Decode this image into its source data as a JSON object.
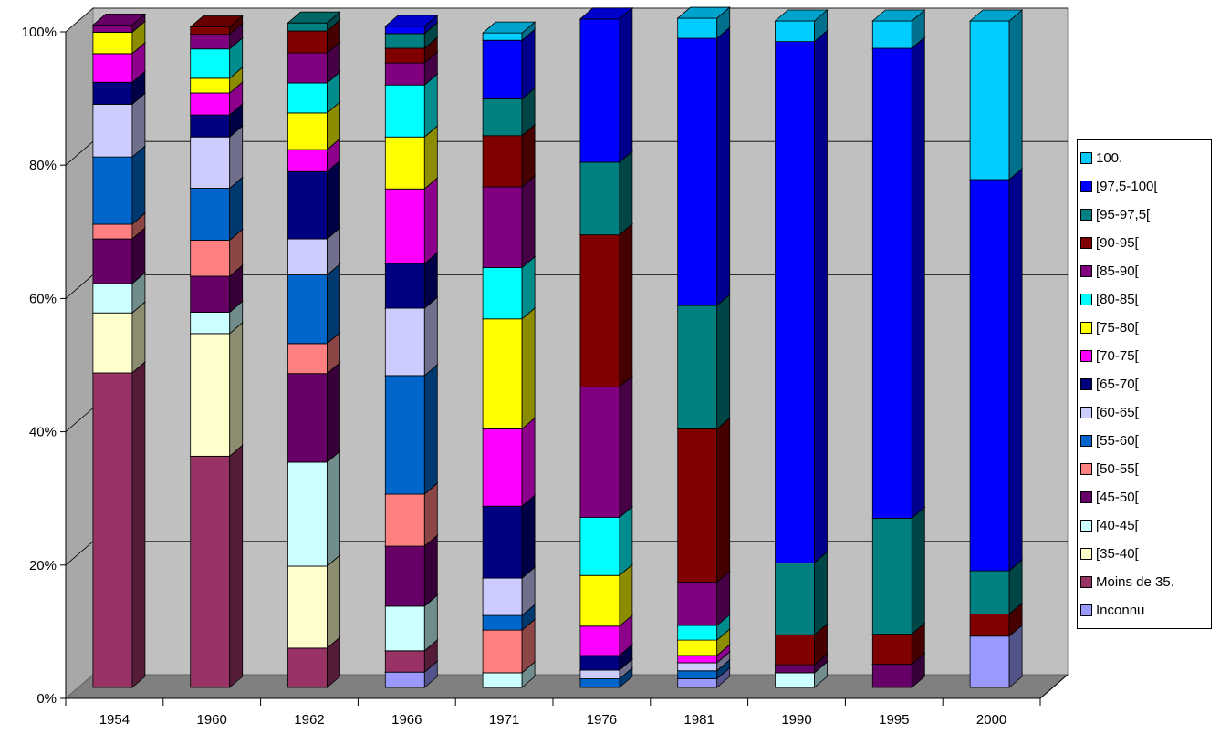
{
  "chart_data": {
    "type": "bar",
    "stacked": true,
    "percent": true,
    "three_d": true,
    "title": "",
    "xlabel": "",
    "ylabel": "",
    "ylim": [
      0,
      100
    ],
    "y_ticks": [
      "0%",
      "20%",
      "40%",
      "60%",
      "80%",
      "100%"
    ],
    "grid": true,
    "legend_position": "right",
    "categories": [
      "1954",
      "1960",
      "1962",
      "1966",
      "1971",
      "1976",
      "1981",
      "1990",
      "1995",
      "2000"
    ],
    "series": [
      {
        "name": "Inconnu",
        "color": "#9999FF",
        "values": [
          0,
          0,
          0,
          2.3,
          0,
          0,
          1.3,
          0,
          0,
          7.7
        ]
      },
      {
        "name": "Moins de 35.",
        "color": "#993366",
        "values": [
          47.2,
          34.7,
          5.9,
          3.2,
          0,
          0,
          0,
          0,
          0,
          0
        ]
      },
      {
        "name": "[35-40[",
        "color": "#FFFFCC",
        "values": [
          9.0,
          18.4,
          12.3,
          0,
          0,
          0,
          0,
          0,
          0,
          0
        ]
      },
      {
        "name": "[40-45[",
        "color": "#CCFFFF",
        "values": [
          4.4,
          3.2,
          15.6,
          6.7,
          2.2,
          0,
          0,
          2.2,
          0,
          0
        ]
      },
      {
        "name": "[45-50[",
        "color": "#660066",
        "values": [
          6.7,
          5.4,
          13.3,
          9.0,
          0,
          0,
          0,
          1.2,
          3.5,
          0
        ]
      },
      {
        "name": "[50-55[",
        "color": "#FF8080",
        "values": [
          2.2,
          5.4,
          4.5,
          7.8,
          6.4,
          0,
          0,
          0,
          0,
          0
        ]
      },
      {
        "name": "[55-60[",
        "color": "#0066CC",
        "values": [
          10.1,
          7.8,
          10.3,
          17.8,
          2.2,
          1.3,
          1.2,
          0,
          0,
          0
        ]
      },
      {
        "name": "[60-65[",
        "color": "#CCCCFF",
        "values": [
          7.9,
          7.7,
          5.4,
          10.1,
          5.6,
          1.3,
          1.2,
          0,
          0,
          0
        ]
      },
      {
        "name": "[65-70[",
        "color": "#000080",
        "values": [
          3.3,
          3.3,
          10.1,
          6.7,
          10.8,
          2.2,
          0,
          0,
          0,
          0
        ]
      },
      {
        "name": "[70-75[",
        "color": "#FF00FF",
        "values": [
          4.3,
          3.3,
          3.3,
          11.2,
          11.6,
          4.4,
          1.1,
          0,
          0,
          0
        ]
      },
      {
        "name": "[75-80[",
        "color": "#FFFF00",
        "values": [
          3.2,
          2.2,
          5.5,
          7.8,
          16.5,
          7.6,
          2.3,
          0,
          0,
          0
        ]
      },
      {
        "name": "[80-85[",
        "color": "#00FFFF",
        "values": [
          0,
          4.4,
          4.5,
          7.8,
          7.7,
          8.7,
          2.2,
          0,
          0,
          0
        ]
      },
      {
        "name": "[85-90[",
        "color": "#800080",
        "values": [
          1.1,
          2.2,
          4.5,
          3.3,
          12.1,
          19.6,
          6.5,
          0,
          0,
          0
        ]
      },
      {
        "name": "[90-95[",
        "color": "#800000",
        "values": [
          0,
          1.1,
          3.3,
          2.2,
          7.7,
          22.8,
          23.0,
          4.5,
          4.5,
          3.3
        ]
      },
      {
        "name": "[95-97,5[",
        "color": "#008080",
        "values": [
          0,
          0,
          1.2,
          2.2,
          5.5,
          10.9,
          18.5,
          10.8,
          17.4,
          6.5
        ]
      },
      {
        "name": "[97,5-100[",
        "color": "#0000FF",
        "values": [
          0,
          0,
          0,
          1.1,
          8.8,
          21.5,
          40.1,
          78.2,
          70.5,
          58.7
        ]
      },
      {
        "name": "100.",
        "color": "#00CCFF",
        "values": [
          0,
          0,
          0,
          0,
          1.1,
          0,
          3.0,
          3.1,
          4.1,
          23.8
        ]
      }
    ]
  }
}
